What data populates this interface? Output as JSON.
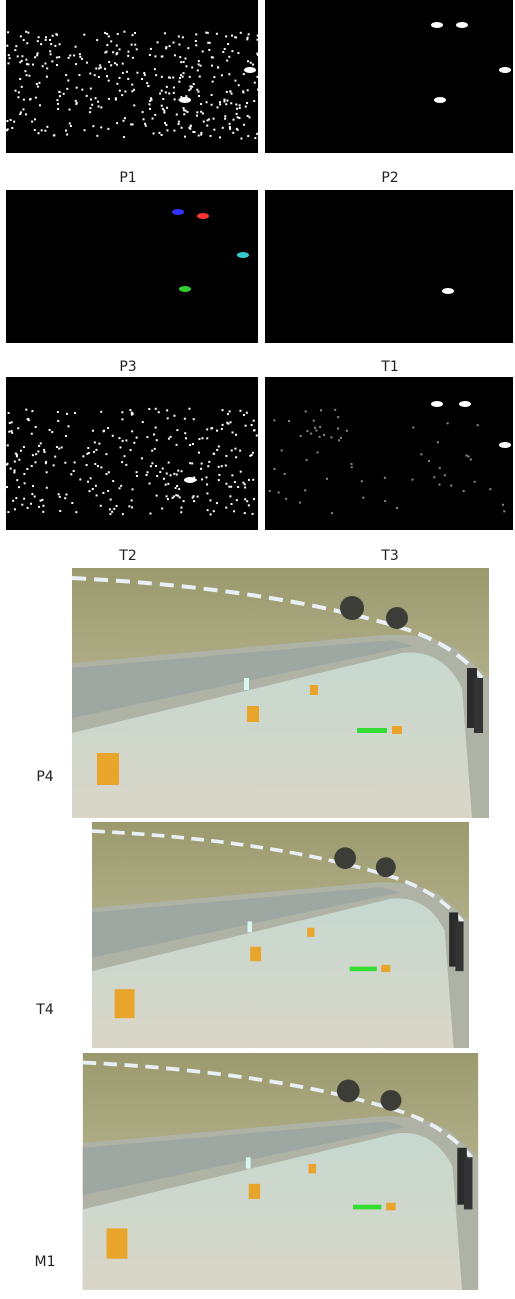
{
  "grid_labels": [
    "P1",
    "P2",
    "P3",
    "T1",
    "T2",
    "T3"
  ],
  "side_labels": [
    "P4",
    "T4",
    "M1"
  ]
}
